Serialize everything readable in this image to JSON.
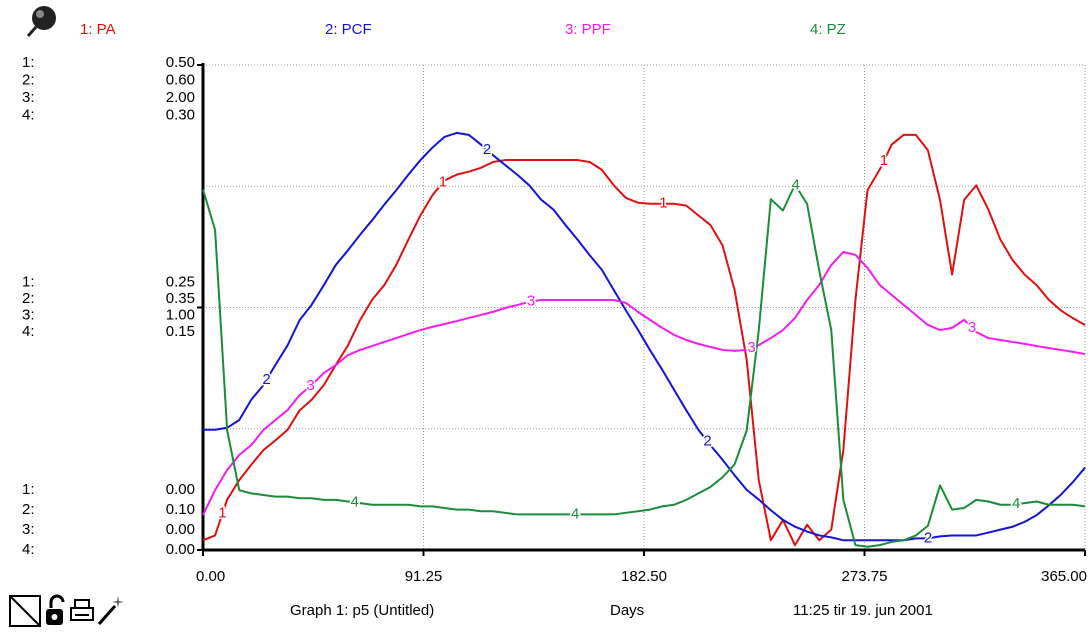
{
  "chart_data": {
    "type": "line",
    "graph_label": "Graph 1: p5 (Untitled)",
    "timestamp": "11:25   tir 19. jun 2001",
    "xlabel": "Days",
    "xlim": [
      0,
      365
    ],
    "xticks": [
      {
        "value": 0,
        "label": "0.00"
      },
      91.25,
      {
        "value": 182.5,
        "label": "182.50"
      },
      273.75,
      {
        "value": 365,
        "label": "365.00"
      }
    ],
    "grid": true,
    "x": [
      0,
      5,
      10,
      15,
      20,
      25,
      30,
      35,
      40,
      45,
      50,
      55,
      60,
      65,
      70,
      75,
      80,
      85,
      90,
      95,
      100,
      105,
      110,
      115,
      120,
      125,
      130,
      135,
      140,
      145,
      150,
      155,
      160,
      165,
      170,
      175,
      180,
      185,
      190,
      195,
      200,
      205,
      210,
      215,
      220,
      225,
      230,
      235,
      240,
      245,
      250,
      255,
      260,
      265,
      270,
      275,
      280,
      285,
      290,
      295,
      300,
      305,
      310,
      315,
      320,
      325,
      330,
      335,
      340,
      345,
      350,
      355,
      360,
      365
    ],
    "series": [
      {
        "name": "1: PA",
        "axis_key": "1:",
        "marker": "1",
        "color": "#e01010",
        "ylim": [
          0,
          0.5
        ],
        "yticks": [
          {
            "value": 0,
            "label": "0.00"
          },
          0.25,
          {
            "value": 0.5,
            "label": "0.50"
          }
        ],
        "values": [
          0.01,
          0.015,
          0.052,
          0.072,
          0.088,
          0.103,
          0.113,
          0.124,
          0.144,
          0.155,
          0.17,
          0.191,
          0.211,
          0.237,
          0.258,
          0.273,
          0.294,
          0.32,
          0.345,
          0.366,
          0.381,
          0.387,
          0.39,
          0.394,
          0.4,
          0.402,
          0.402,
          0.402,
          0.402,
          0.402,
          0.402,
          0.402,
          0.4,
          0.392,
          0.376,
          0.363,
          0.358,
          0.357,
          0.357,
          0.357,
          0.355,
          0.345,
          0.335,
          0.314,
          0.268,
          0.196,
          0.072,
          0.01,
          0.031,
          0.005,
          0.026,
          0.01,
          0.021,
          0.103,
          0.258,
          0.371,
          0.392,
          0.418,
          0.428,
          0.428,
          0.412,
          0.361,
          0.284,
          0.361,
          0.376,
          0.351,
          0.32,
          0.299,
          0.284,
          0.273,
          0.258,
          0.247,
          0.239,
          0.232
        ]
      },
      {
        "name": "2: PCF",
        "axis_key": "2:",
        "marker": "2",
        "color": "#1414d6",
        "ylim": [
          0.1,
          0.6
        ],
        "yticks": [
          {
            "value": 0.1,
            "label": "0.10"
          },
          0.35,
          {
            "value": 0.6,
            "label": "0.60"
          }
        ],
        "values": [
          0.224,
          0.224,
          0.226,
          0.234,
          0.255,
          0.27,
          0.291,
          0.311,
          0.337,
          0.353,
          0.373,
          0.394,
          0.409,
          0.425,
          0.44,
          0.456,
          0.471,
          0.487,
          0.502,
          0.515,
          0.526,
          0.53,
          0.528,
          0.518,
          0.507,
          0.497,
          0.487,
          0.476,
          0.461,
          0.451,
          0.435,
          0.42,
          0.404,
          0.389,
          0.368,
          0.347,
          0.327,
          0.306,
          0.286,
          0.265,
          0.244,
          0.224,
          0.208,
          0.193,
          0.177,
          0.162,
          0.152,
          0.141,
          0.131,
          0.124,
          0.119,
          0.115,
          0.113,
          0.11,
          0.11,
          0.11,
          0.11,
          0.11,
          0.11,
          0.112,
          0.112,
          0.114,
          0.115,
          0.115,
          0.115,
          0.118,
          0.121,
          0.124,
          0.129,
          0.136,
          0.146,
          0.157,
          0.17,
          0.185
        ]
      },
      {
        "name": "3: PPF",
        "axis_key": "3:",
        "marker": "3",
        "color": "#f01ef0",
        "ylim": [
          0,
          2
        ],
        "yticks": [
          {
            "value": 0,
            "label": "0.00"
          },
          {
            "value": 1,
            "label": "1.00"
          },
          {
            "value": 2,
            "label": "2.00"
          }
        ],
        "values": [
          0.144,
          0.247,
          0.33,
          0.392,
          0.433,
          0.495,
          0.536,
          0.577,
          0.639,
          0.68,
          0.73,
          0.763,
          0.804,
          0.825,
          0.841,
          0.858,
          0.874,
          0.891,
          0.907,
          0.92,
          0.932,
          0.944,
          0.957,
          0.969,
          0.982,
          0.998,
          1.01,
          1.023,
          1.031,
          1.031,
          1.031,
          1.031,
          1.031,
          1.031,
          1.031,
          1.019,
          0.982,
          0.949,
          0.916,
          0.887,
          0.866,
          0.85,
          0.837,
          0.825,
          0.821,
          0.825,
          0.845,
          0.874,
          0.907,
          0.957,
          1.031,
          1.093,
          1.175,
          1.229,
          1.217,
          1.163,
          1.093,
          1.052,
          1.01,
          0.969,
          0.928,
          0.907,
          0.916,
          0.949,
          0.899,
          0.874,
          0.866,
          0.858,
          0.85,
          0.841,
          0.833,
          0.825,
          0.817,
          0.808
        ]
      },
      {
        "name": "4: PZ",
        "axis_key": "4:",
        "marker": "4",
        "color": "#1a8c3a",
        "ylim": [
          0,
          0.3
        ],
        "yticks": [
          {
            "value": 0,
            "label": "0.00"
          },
          0.15,
          {
            "value": 0.3,
            "label": "0.30"
          }
        ],
        "values": [
          0.223,
          0.198,
          0.074,
          0.037,
          0.035,
          0.034,
          0.033,
          0.033,
          0.032,
          0.032,
          0.031,
          0.031,
          0.03,
          0.029,
          0.028,
          0.028,
          0.028,
          0.028,
          0.027,
          0.027,
          0.026,
          0.025,
          0.025,
          0.024,
          0.024,
          0.023,
          0.022,
          0.022,
          0.022,
          0.022,
          0.022,
          0.022,
          0.022,
          0.022,
          0.022,
          0.023,
          0.024,
          0.025,
          0.027,
          0.028,
          0.031,
          0.035,
          0.039,
          0.045,
          0.053,
          0.074,
          0.136,
          0.217,
          0.21,
          0.226,
          0.214,
          0.173,
          0.136,
          0.031,
          0.003,
          0.002,
          0.003,
          0.005,
          0.006,
          0.009,
          0.015,
          0.04,
          0.025,
          0.026,
          0.031,
          0.03,
          0.028,
          0.028,
          0.029,
          0.03,
          0.028,
          0.028,
          0.028,
          0.027
        ]
      }
    ]
  }
}
